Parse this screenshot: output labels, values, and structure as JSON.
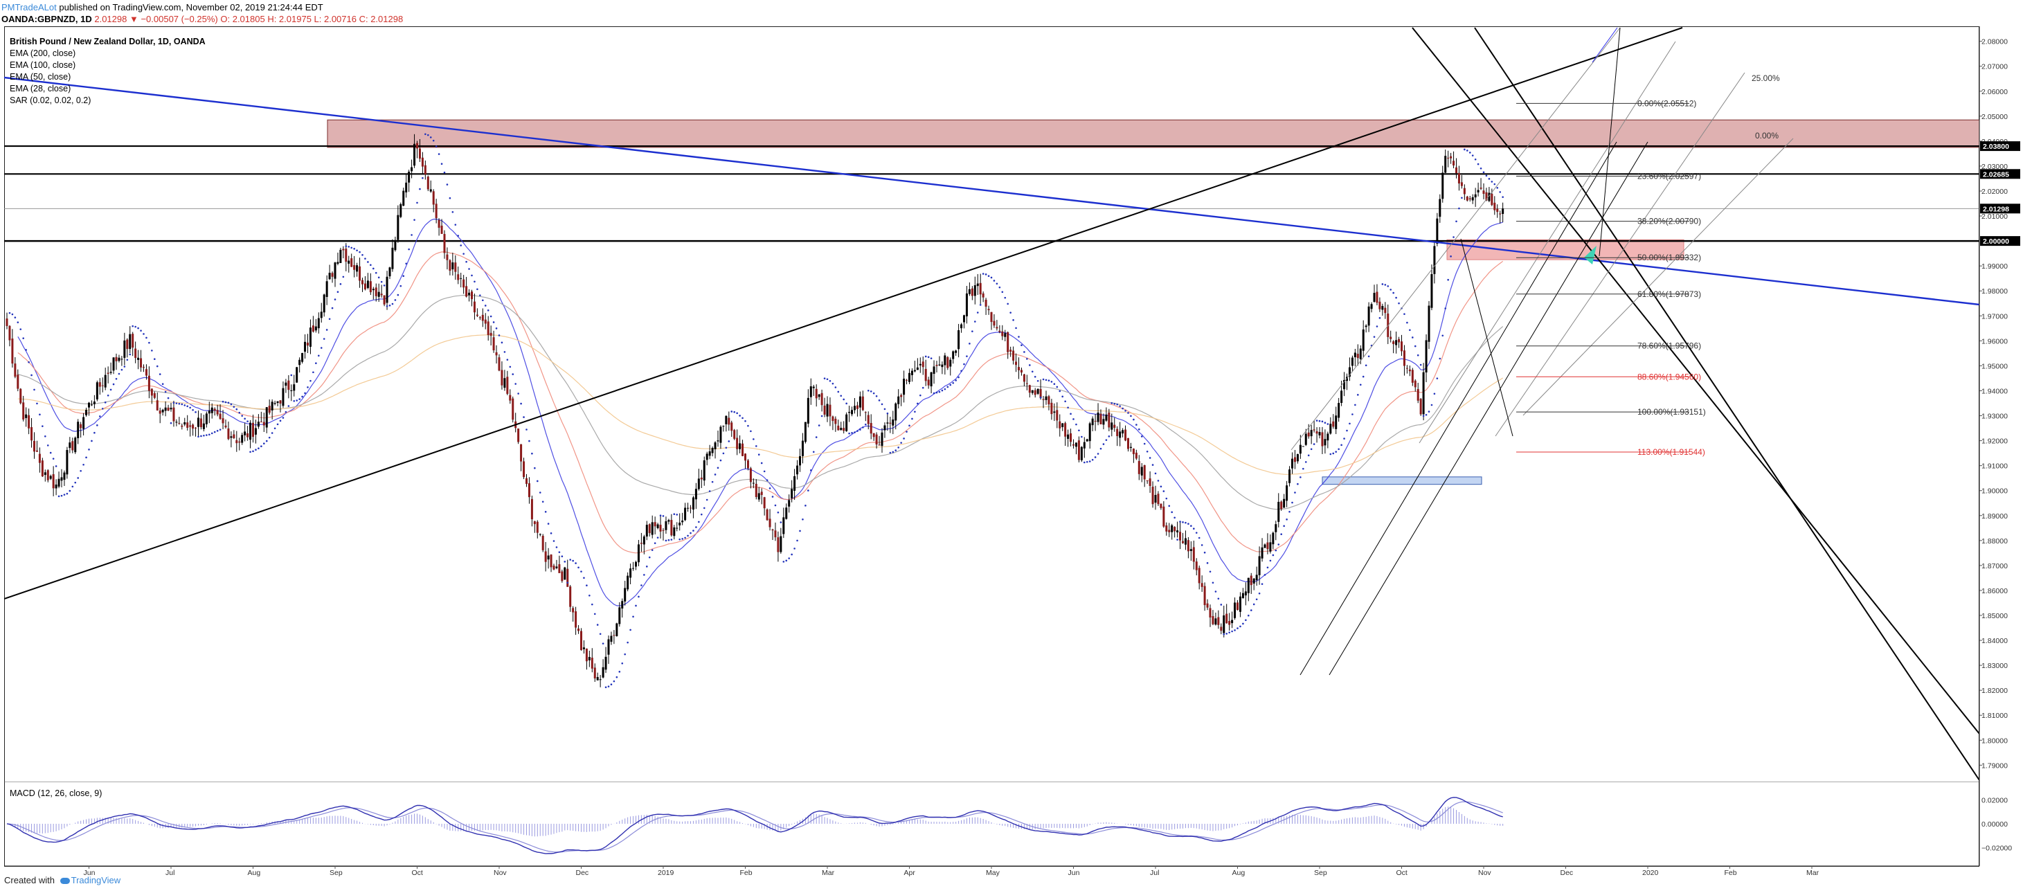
{
  "header": {
    "author": "PMTradeALot",
    "published": "published on TradingView.com, November 02, 2019 21:24:44 EDT",
    "symbol": "OANDA:GBPNZD, 1D",
    "change": "2.01298 ▼ −0.00507 (−0.25%)",
    "ohlc": "O: 2.01805 H: 2.01975 L: 2.00716 C: 2.01298"
  },
  "legend": {
    "title": "British Pound / New Zealand Dollar, 1D, OANDA",
    "indicators": [
      "EMA (200, close)",
      "EMA (100, close)",
      "EMA (50, close)",
      "EMA (28, close)",
      "SAR (0.02, 0.02, 0.2)"
    ]
  },
  "macd_label": "MACD (12, 26, close, 9)",
  "footer": {
    "created": "Created with",
    "brand": "TradingView"
  },
  "colors": {
    "bull": "#000000",
    "bear": "#8b1a1a",
    "ema200": "#f2c48a",
    "ema100": "#a0a0a0",
    "ema50": "#f08a7a",
    "ema28": "#3c3ce0",
    "sar": "#2233bb",
    "trend_blue": "#1c2fcf",
    "supply_zone": "#d9a3a3",
    "demand_zone": "#b8cef0",
    "fib_red": "#e03030"
  },
  "chart_data": {
    "type": "candlestick",
    "price_axis": {
      "ylim": [
        1.784,
        2.086
      ],
      "ticks": [
        "2.08000",
        "2.07000",
        "2.06000",
        "2.05000",
        "2.04000",
        "2.03000",
        "2.02000",
        "2.01000",
        "1.99000",
        "1.98000",
        "1.97000",
        "1.96000",
        "1.95000",
        "1.94000",
        "1.93000",
        "1.92000",
        "1.91000",
        "1.90000",
        "1.89000",
        "1.88000",
        "1.87000",
        "1.86000",
        "1.85000",
        "1.84000",
        "1.83000",
        "1.82000",
        "1.81000",
        "1.80000",
        "1.79000"
      ],
      "highlighted": [
        {
          "label": "2.03800",
          "value": 2.038
        },
        {
          "label": "2.02685",
          "value": 2.02685
        },
        {
          "label": "2.01298",
          "value": 2.01298
        },
        {
          "label": "2.00000",
          "value": 2.0
        }
      ]
    },
    "time_axis": {
      "labels": [
        "Jun",
        "Jul",
        "Aug",
        "Sep",
        "Oct",
        "Nov",
        "Dec",
        "2019",
        "Feb",
        "Mar",
        "Apr",
        "May",
        "Jun",
        "Jul",
        "Aug",
        "Sep",
        "Oct",
        "Nov",
        "Dec",
        "2020",
        "Feb",
        "Mar"
      ],
      "index": [
        30,
        60,
        90,
        120,
        150,
        180,
        210,
        240,
        270,
        300,
        330,
        360,
        390,
        420,
        450,
        480,
        510,
        540,
        570,
        600,
        630,
        660
      ]
    },
    "anchors": [
      [
        0,
        1.966
      ],
      [
        5,
        1.935
      ],
      [
        12,
        1.91
      ],
      [
        18,
        1.902
      ],
      [
        28,
        1.93
      ],
      [
        38,
        1.95
      ],
      [
        45,
        1.96
      ],
      [
        55,
        1.935
      ],
      [
        65,
        1.925
      ],
      [
        75,
        1.93
      ],
      [
        85,
        1.92
      ],
      [
        95,
        1.93
      ],
      [
        105,
        1.945
      ],
      [
        115,
        1.975
      ],
      [
        122,
        1.998
      ],
      [
        130,
        1.985
      ],
      [
        138,
        1.978
      ],
      [
        146,
        2.025
      ],
      [
        150,
        2.04
      ],
      [
        155,
        2.02
      ],
      [
        160,
        1.995
      ],
      [
        168,
        1.978
      ],
      [
        176,
        1.962
      ],
      [
        184,
        1.935
      ],
      [
        190,
        1.9
      ],
      [
        196,
        1.875
      ],
      [
        204,
        1.866
      ],
      [
        210,
        1.838
      ],
      [
        216,
        1.823
      ],
      [
        222,
        1.845
      ],
      [
        228,
        1.87
      ],
      [
        236,
        1.888
      ],
      [
        244,
        1.885
      ],
      [
        252,
        1.898
      ],
      [
        258,
        1.92
      ],
      [
        264,
        1.928
      ],
      [
        270,
        1.91
      ],
      [
        276,
        1.895
      ],
      [
        282,
        1.878
      ],
      [
        288,
        1.905
      ],
      [
        294,
        1.94
      ],
      [
        300,
        1.932
      ],
      [
        306,
        1.925
      ],
      [
        312,
        1.938
      ],
      [
        318,
        1.918
      ],
      [
        324,
        1.932
      ],
      [
        330,
        1.95
      ],
      [
        338,
        1.945
      ],
      [
        346,
        1.955
      ],
      [
        352,
        1.98
      ],
      [
        356,
        1.982
      ],
      [
        362,
        1.965
      ],
      [
        368,
        1.955
      ],
      [
        374,
        1.942
      ],
      [
        380,
        1.935
      ],
      [
        386,
        1.925
      ],
      [
        392,
        1.915
      ],
      [
        398,
        1.93
      ],
      [
        404,
        1.928
      ],
      [
        410,
        1.92
      ],
      [
        416,
        1.905
      ],
      [
        424,
        1.885
      ],
      [
        432,
        1.878
      ],
      [
        440,
        1.85
      ],
      [
        446,
        1.846
      ],
      [
        452,
        1.858
      ],
      [
        458,
        1.872
      ],
      [
        464,
        1.888
      ],
      [
        470,
        1.912
      ],
      [
        476,
        1.925
      ],
      [
        482,
        1.918
      ],
      [
        488,
        1.94
      ],
      [
        494,
        1.955
      ],
      [
        500,
        1.98
      ],
      [
        506,
        1.962
      ],
      [
        512,
        1.95
      ],
      [
        517,
        1.932
      ],
      [
        521,
        1.985
      ],
      [
        524,
        2.02
      ],
      [
        527,
        2.036
      ],
      [
        530,
        2.028
      ],
      [
        534,
        2.018
      ],
      [
        538,
        2.022
      ],
      [
        542,
        2.018
      ],
      [
        545,
        2.014
      ],
      [
        547,
        2.013
      ]
    ],
    "ema": [
      {
        "name": "EMA (28, close)",
        "period": 28
      },
      {
        "name": "EMA (50, close)",
        "period": 50
      },
      {
        "name": "EMA (100, close)",
        "period": 100
      },
      {
        "name": "EMA (200, close)",
        "period": 200
      }
    ],
    "fib_levels": [
      {
        "label": "0.00%(2.05512)",
        "value": 2.05512
      },
      {
        "label": "23.60%(2.02597)",
        "value": 2.02597
      },
      {
        "label": "38.20%(2.00790)",
        "value": 2.0079
      },
      {
        "label": "50.00%(1.99332)",
        "value": 1.99332
      },
      {
        "label": "61.80%(1.97873)",
        "value": 1.97873
      },
      {
        "label": "78.60%(1.95796)",
        "value": 1.95796
      },
      {
        "label": "88.60%(1.94560)",
        "value": 1.9456
      },
      {
        "label": "100.00%(1.93151)",
        "value": 1.93151
      },
      {
        "label": "113.00%(1.91544)",
        "value": 1.91544
      }
    ],
    "fan_labels": [
      "25.00%",
      "0.00%"
    ],
    "zones": [
      {
        "name": "supply",
        "from": 2.0375,
        "to": 2.0485
      },
      {
        "name": "retest",
        "from": 1.9925,
        "to": 2.0005
      },
      {
        "name": "demand",
        "from": 1.9025,
        "to": 1.9055
      }
    ],
    "macd": {
      "name": "MACD (12, 26, close, 9)",
      "ylim": [
        -0.03,
        0.03
      ],
      "ticks": [
        {
          "label": "0.02000",
          "value": 0.02
        },
        {
          "label": "0.00000",
          "value": 0.0
        },
        {
          "label": "−0.02000",
          "value": -0.02
        }
      ]
    }
  }
}
